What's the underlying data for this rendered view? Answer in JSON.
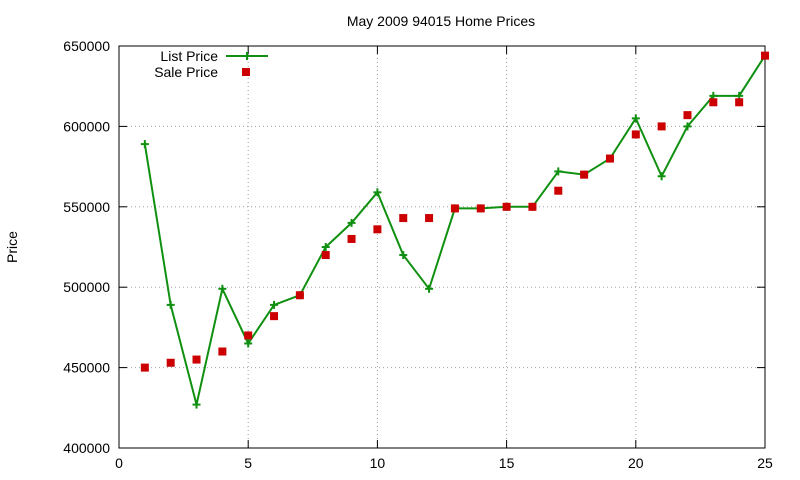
{
  "chart_data": {
    "type": "line",
    "title": "May 2009 94015 Home Prices",
    "xlabel": "",
    "ylabel": "Price",
    "xlim": [
      0,
      25
    ],
    "ylim": [
      400000,
      650000
    ],
    "xticks": [
      0,
      5,
      10,
      15,
      20,
      25
    ],
    "yticks": [
      400000,
      450000,
      500000,
      550000,
      600000,
      650000
    ],
    "grid": true,
    "legend_position": "top-left",
    "series": [
      {
        "name": "List Price",
        "style": "line+plus",
        "color": "#109010",
        "x": [
          1,
          2,
          3,
          4,
          5,
          6,
          7,
          8,
          9,
          10,
          11,
          12,
          13,
          14,
          15,
          16,
          17,
          18,
          19,
          20,
          21,
          22,
          23,
          24,
          25
        ],
        "y": [
          589000,
          489000,
          427000,
          499000,
          465000,
          489000,
          495000,
          525000,
          540000,
          559000,
          520000,
          499000,
          549000,
          549000,
          550000,
          550000,
          572000,
          570000,
          580000,
          605000,
          569000,
          600000,
          619000,
          619000,
          644000
        ]
      },
      {
        "name": "Sale Price",
        "style": "square",
        "color": "#cc0000",
        "x": [
          1,
          2,
          3,
          4,
          5,
          6,
          7,
          8,
          9,
          10,
          11,
          12,
          13,
          14,
          15,
          16,
          17,
          18,
          19,
          20,
          21,
          22,
          23,
          24,
          25
        ],
        "y": [
          450000,
          453000,
          455000,
          460000,
          470000,
          482000,
          495000,
          520000,
          530000,
          536000,
          543000,
          543000,
          549000,
          549000,
          550000,
          550000,
          560000,
          570000,
          580000,
          595000,
          600000,
          607000,
          615000,
          615000,
          644000
        ]
      }
    ]
  }
}
